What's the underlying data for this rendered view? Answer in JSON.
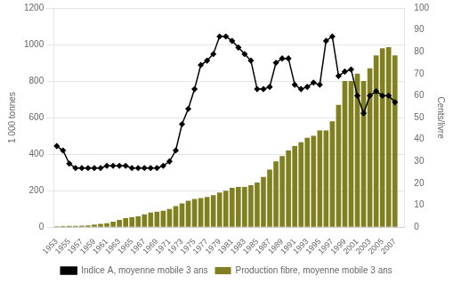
{
  "chart_data": {
    "type": "bar",
    "x": [
      1953,
      1954,
      1955,
      1956,
      1957,
      1958,
      1959,
      1960,
      1961,
      1962,
      1963,
      1964,
      1965,
      1966,
      1967,
      1968,
      1969,
      1970,
      1971,
      1972,
      1973,
      1974,
      1975,
      1976,
      1977,
      1978,
      1979,
      1980,
      1981,
      1982,
      1983,
      1984,
      1985,
      1986,
      1987,
      1988,
      1989,
      1990,
      1991,
      1992,
      1993,
      1994,
      1995,
      1996,
      1997,
      1998,
      1999,
      2000,
      2001,
      2002,
      2003,
      2004,
      2005,
      2006,
      2007
    ],
    "xlim": [
      1952.5,
      2008.5
    ],
    "xticks": [
      1953,
      1955,
      1957,
      1959,
      1961,
      1963,
      1965,
      1967,
      1969,
      1971,
      1973,
      1975,
      1977,
      1979,
      1981,
      1983,
      1985,
      1987,
      1989,
      1991,
      1993,
      1995,
      1997,
      1999,
      2001,
      2003,
      2005,
      2007
    ],
    "ylim": [
      0,
      1200
    ],
    "yticks": [
      0,
      200,
      400,
      600,
      800,
      1000,
      1200
    ],
    "y2lim": [
      0,
      100
    ],
    "y2ticks": [
      0,
      10,
      20,
      30,
      40,
      50,
      60,
      70,
      80,
      90,
      100
    ],
    "ylabel": "1 000 tonnes",
    "y2label": "Cents/livre",
    "grid": true,
    "legend": "bottom",
    "series": [
      {
        "name": "Production fibre, moyenne mobile 3 ans",
        "type": "bar",
        "color": "#808020",
        "values": [
          5,
          6,
          7,
          7,
          8,
          10,
          15,
          18,
          22,
          30,
          40,
          50,
          55,
          60,
          70,
          80,
          85,
          90,
          100,
          115,
          130,
          145,
          155,
          160,
          165,
          175,
          190,
          200,
          215,
          220,
          220,
          230,
          245,
          275,
          315,
          360,
          390,
          420,
          445,
          465,
          490,
          500,
          530,
          530,
          580,
          670,
          800,
          800,
          840,
          800,
          870,
          940,
          980,
          985,
          940
        ]
      },
      {
        "name": "Indice A, moyenne mobile 3 ans",
        "type": "line",
        "axis": "y2",
        "color": "#000000",
        "marker": "diamond",
        "values": [
          37,
          35,
          29,
          27,
          27,
          27,
          27,
          27,
          28,
          28,
          28,
          28,
          27,
          27,
          27,
          27,
          27,
          28,
          30,
          35,
          47,
          54,
          63,
          74,
          76,
          79,
          87,
          87,
          85,
          82,
          79,
          76,
          63,
          63,
          64,
          75,
          77,
          77,
          65,
          63,
          64,
          66,
          65,
          85,
          87,
          69,
          71,
          72,
          60,
          52,
          60,
          62,
          60,
          60,
          57
        ]
      }
    ]
  }
}
